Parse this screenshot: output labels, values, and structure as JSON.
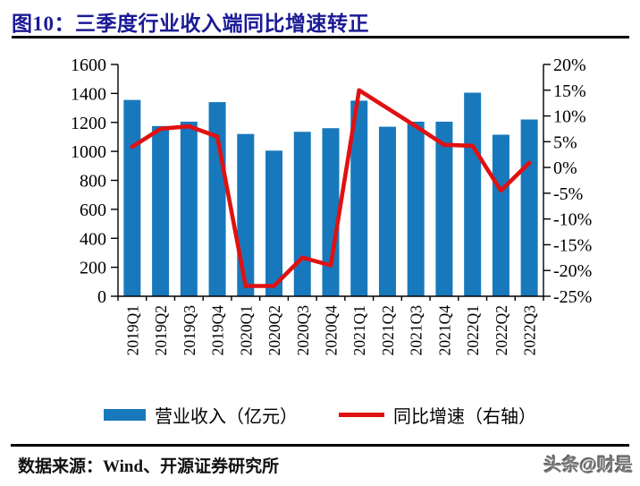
{
  "header": {
    "title": "图10：三季度行业收入端同比增速转正",
    "title_color": "#1b1a96"
  },
  "chart_data": {
    "type": "bar",
    "title": "图10：三季度行业收入端同比增速转正",
    "categories": [
      "2019Q1",
      "2019Q2",
      "2019Q3",
      "2019Q4",
      "2020Q1",
      "2020Q2",
      "2020Q3",
      "2020Q4",
      "2021Q1",
      "2021Q2",
      "2021Q3",
      "2021Q4",
      "2022Q1",
      "2022Q2",
      "2022Q3"
    ],
    "series": [
      {
        "name": "营业收入（亿元）",
        "type": "bar",
        "axis": "left",
        "color": "#1878bc",
        "values": [
          1355,
          1175,
          1205,
          1340,
          1120,
          1005,
          1135,
          1160,
          1350,
          1170,
          1205,
          1205,
          1405,
          1115,
          1220
        ]
      },
      {
        "name": "同比增速（右轴）",
        "type": "line",
        "axis": "right",
        "color": "#e01111",
        "values": [
          4,
          7.5,
          8,
          6,
          -23,
          -23,
          -17.5,
          -19,
          15,
          11.5,
          8,
          4.4,
          4.2,
          -4.5,
          0.9
        ]
      }
    ],
    "left_axis": {
      "min": 0,
      "max": 1600,
      "tick_labels": [
        "1600",
        "1400",
        "1200",
        "1000",
        "800",
        "600",
        "400",
        "200",
        "0"
      ]
    },
    "right_axis": {
      "min": -25,
      "max": 20,
      "tick_labels": [
        "20%",
        "15%",
        "10%",
        "5%",
        "0%",
        "-5%",
        "-10%",
        "-15%",
        "-20%",
        "-25%"
      ]
    },
    "grid": false,
    "legend_position": "bottom"
  },
  "legend": {
    "items": [
      {
        "label": "营业收入（亿元）",
        "swatch": "bar",
        "color": "#1878bc"
      },
      {
        "label": "同比增速（右轴）",
        "swatch": "line",
        "color": "#e01111"
      }
    ]
  },
  "footer": {
    "source": "数据来源：Wind、开源证券研究所",
    "watermark": "头条@财是"
  }
}
